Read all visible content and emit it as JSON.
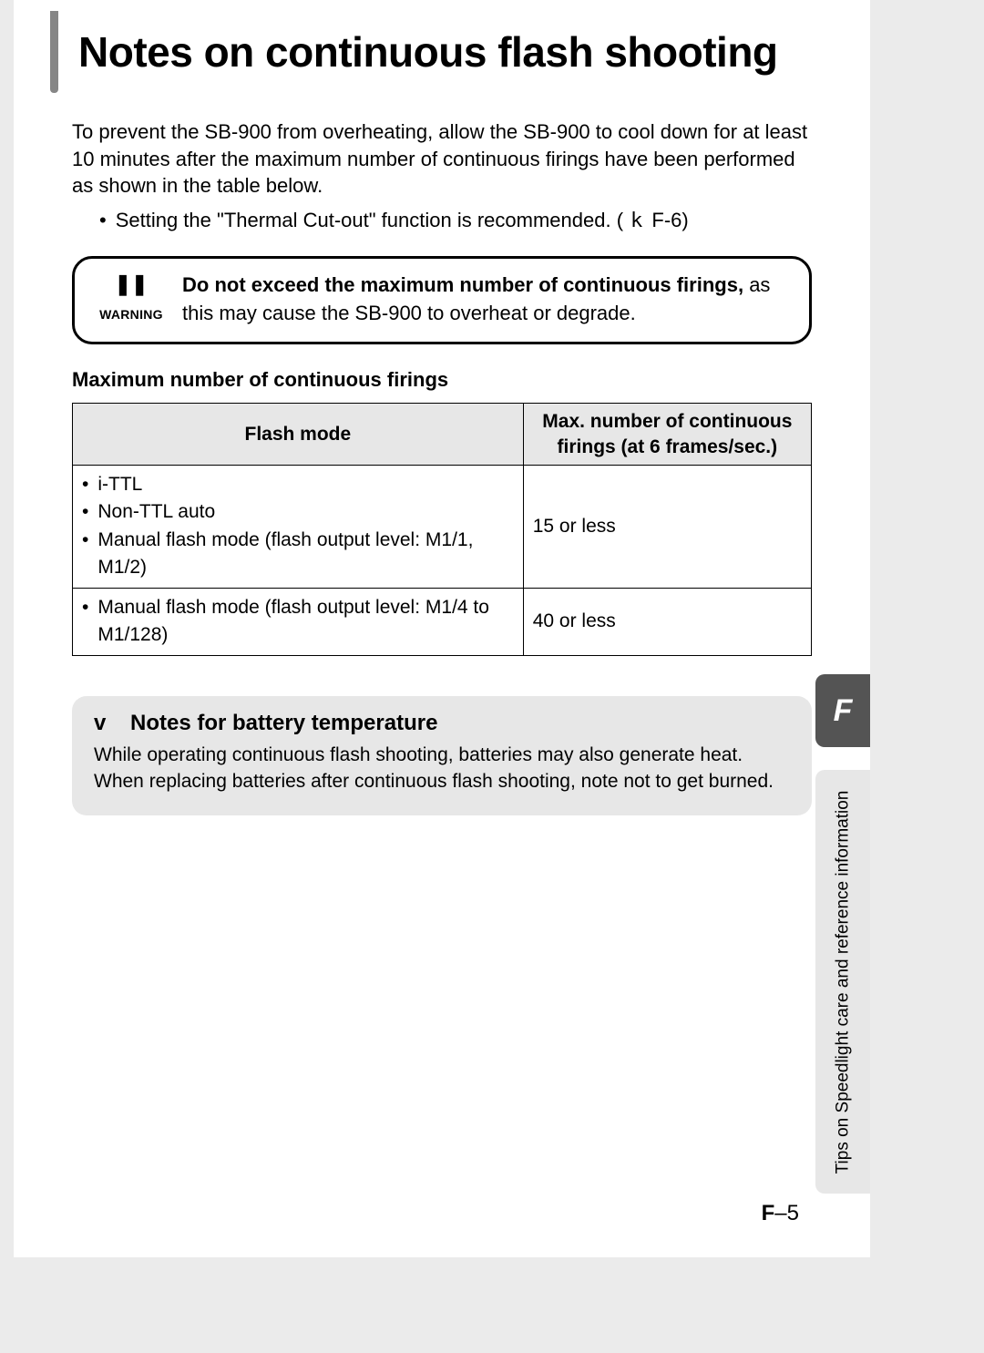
{
  "colors": {
    "page_bg": "#ffffff",
    "body_bg": "#ebebeb",
    "accent_bar": "#868686",
    "table_header_bg": "#e7e7e7",
    "note_bg": "#e7e7e7",
    "tab_bg": "#545454",
    "tab_fg": "#ffffff",
    "border": "#000000",
    "text": "#000000"
  },
  "typography": {
    "base_family": "Arial, Helvetica, sans-serif",
    "title_fontsize": 46,
    "body_fontsize": 22,
    "table_fontsize": 21,
    "note_title_fontsize": 24
  },
  "title": "Notes on continuous flash shooting",
  "intro": "To prevent the SB-900 from overheating, allow the SB-900 to cool down for at least 10 minutes after the maximum number of continuous firings have been performed as shown in the table below.",
  "sub_bullet": {
    "text": "Setting the \"Thermal Cut-out\" function is recommended. (",
    "ref_icon": "k",
    "ref": "F-6",
    "text_after": ")"
  },
  "warning": {
    "symbol": "❚❚",
    "label": "WARNING",
    "strong": "Do not exceed the maximum number of continuous firings,",
    "rest": " as this may cause the SB-900 to overheat or degrade."
  },
  "table_title": "Maximum number of continuous firings",
  "table": {
    "columns": [
      "Flash mode",
      "Max. number of continuous firings (at 6 frames/sec.)"
    ],
    "col_widths_pct": [
      61,
      39
    ],
    "rows": [
      {
        "mode_items": [
          "i-TTL",
          "Non-TTL auto",
          "Manual flash mode (flash output level: M1/1, M1/2)"
        ],
        "max": "15 or less"
      },
      {
        "mode_items": [
          "Manual flash mode (flash output level: M1/4 to M1/128)"
        ],
        "max": "40 or less"
      }
    ]
  },
  "note": {
    "icon": "v",
    "title": "Notes for battery temperature",
    "body": "While operating continuous flash shooting, batteries may also generate heat. When replacing batteries after continuous flash shooting, note not to get burned."
  },
  "side": {
    "tab_letter": "F",
    "side_text": "Tips on Speedlight care and reference information"
  },
  "page_number": {
    "prefix": "F",
    "sep": "–",
    "num": "5"
  }
}
